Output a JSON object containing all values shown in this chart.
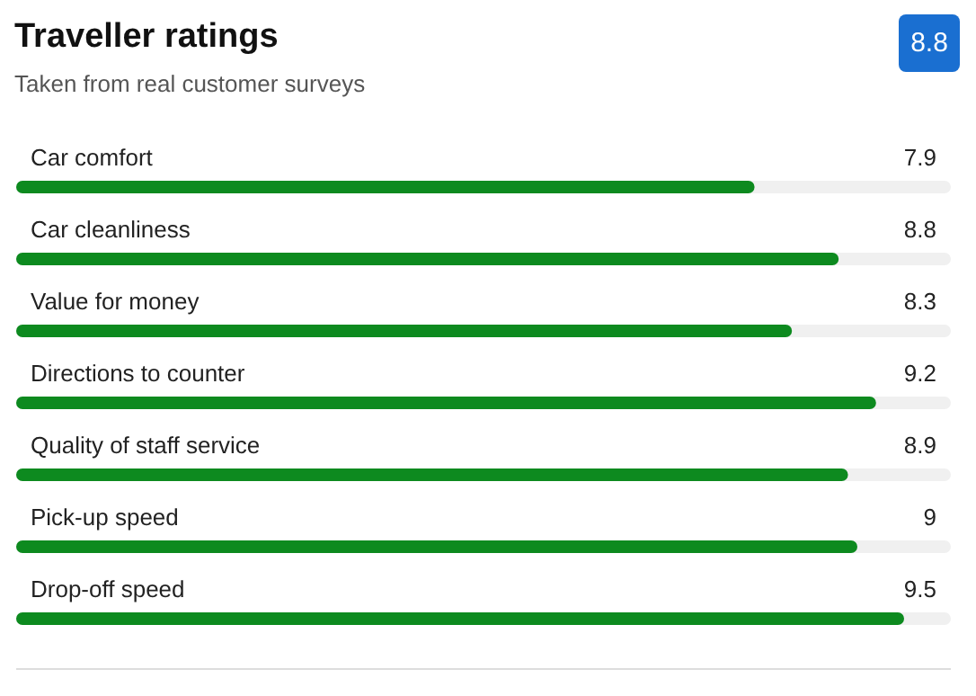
{
  "chart_data": {
    "type": "bar",
    "orientation": "horizontal",
    "title": "Traveller ratings",
    "subtitle": "Taken from real customer surveys",
    "categories": [
      "Car comfort",
      "Car cleanliness",
      "Value for money",
      "Directions to counter",
      "Quality of staff service",
      "Pick-up speed",
      "Drop-off speed"
    ],
    "values": [
      7.9,
      8.8,
      8.3,
      9.2,
      8.9,
      9,
      9.5
    ],
    "color": "#0d8a1f",
    "xlim": [
      0,
      10
    ],
    "data_labels": true,
    "annotations": [
      "8.8"
    ]
  }
}
